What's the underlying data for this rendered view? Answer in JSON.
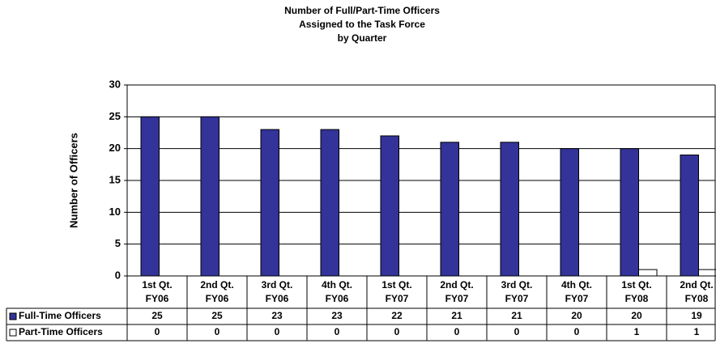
{
  "chart_data": {
    "type": "bar",
    "title": [
      "Number of Full/Part-Time Officers",
      "Assigned to the Task Force",
      "by Quarter"
    ],
    "y_label": "Number of Officers",
    "categories": [
      "1st Qt.\nFY06",
      "2nd Qt.\nFY06",
      "3rd Qt.\nFY06",
      "4th Qt.\nFY06",
      "1st Qt.\nFY07",
      "2nd Qt.\nFY07",
      "3rd Qt.\nFY07",
      "4th Qt.\nFY07",
      "1st Qt.\nFY08",
      "2nd Qt.\nFY08"
    ],
    "series": [
      {
        "name": "Full-Time Officers",
        "color": "#333399",
        "values": [
          25,
          25,
          23,
          23,
          22,
          21,
          21,
          20,
          20,
          19
        ]
      },
      {
        "name": "Part-Time Officers",
        "color": "#ffffff",
        "values": [
          0,
          0,
          0,
          0,
          0,
          0,
          0,
          0,
          1,
          1
        ]
      }
    ],
    "ylim": [
      0,
      30
    ],
    "yticks": [
      0,
      5,
      10,
      15,
      20,
      25,
      30
    ],
    "grid": true
  }
}
